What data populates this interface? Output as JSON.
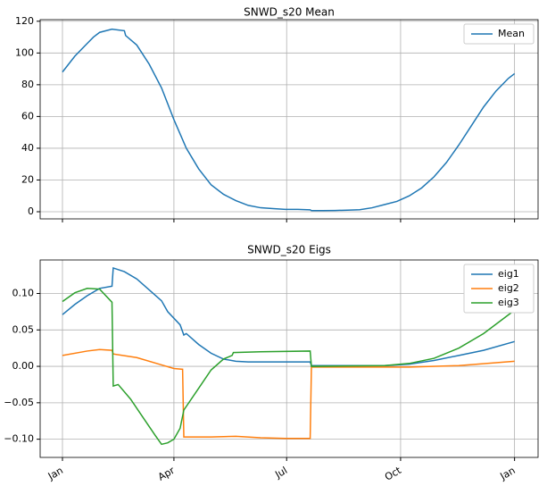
{
  "chart_data": [
    {
      "type": "line",
      "title": "SNWD_s20 Mean",
      "series": [
        {
          "name": "Mean",
          "color": "#1f77b4",
          "x": [
            0,
            10,
            20,
            25,
            30,
            40,
            50,
            51,
            60,
            70,
            80,
            90,
            100,
            110,
            120,
            130,
            140,
            150,
            160,
            170,
            180,
            190,
            200,
            201,
            210,
            220,
            230,
            240,
            250,
            260,
            270,
            280,
            290,
            300,
            310,
            320,
            330,
            340,
            350,
            360,
            365
          ],
          "values": [
            88,
            98,
            106,
            110,
            113,
            115,
            114,
            111,
            105,
            93,
            78,
            58,
            40,
            27,
            17,
            11,
            7,
            4,
            2.5,
            2,
            1.5,
            1.5,
            1.2,
            0.7,
            0.7,
            0.8,
            1,
            1.3,
            2.5,
            4.5,
            6.5,
            10,
            15,
            22,
            31,
            42,
            54,
            66,
            76,
            84,
            87
          ]
        }
      ],
      "xlim": [
        -18,
        384
      ],
      "ylim": [
        -4.5,
        121
      ],
      "xticks": [
        0,
        90,
        181,
        273,
        365
      ],
      "show_xticklabels": false,
      "yticks": [
        0,
        20,
        40,
        60,
        80,
        100,
        120
      ],
      "grid": true,
      "legend": "upper right"
    },
    {
      "type": "line",
      "title": "SNWD_s20 Eigs",
      "series": [
        {
          "name": "eig1",
          "color": "#1f77b4",
          "x": [
            0,
            10,
            20,
            30,
            40,
            41,
            50,
            60,
            70,
            80,
            85,
            95,
            98,
            100,
            110,
            120,
            130,
            140,
            150,
            200,
            201,
            260,
            280,
            300,
            320,
            340,
            365
          ],
          "values": [
            0.071,
            0.085,
            0.097,
            0.107,
            0.11,
            0.135,
            0.13,
            0.12,
            0.105,
            0.09,
            0.075,
            0.057,
            0.043,
            0.045,
            0.03,
            0.018,
            0.01,
            0.007,
            0.006,
            0.006,
            0.001,
            0.001,
            0.003,
            0.008,
            0.015,
            0.022,
            0.034
          ]
        },
        {
          "name": "eig2",
          "color": "#ff7f0e",
          "x": [
            0,
            20,
            30,
            40,
            41,
            60,
            80,
            90,
            97,
            98,
            120,
            140,
            160,
            180,
            200,
            201,
            280,
            320,
            365
          ],
          "values": [
            0.015,
            0.021,
            0.023,
            0.022,
            0.017,
            0.012,
            0.002,
            -0.003,
            -0.004,
            -0.097,
            -0.097,
            -0.096,
            -0.098,
            -0.099,
            -0.099,
            -0.001,
            -0.001,
            0.001,
            0.007
          ]
        },
        {
          "name": "eig3",
          "color": "#2ca02c",
          "x": [
            0,
            10,
            20,
            30,
            40,
            41,
            45,
            55,
            65,
            75,
            80,
            85,
            90,
            95,
            98,
            110,
            120,
            130,
            137,
            138,
            160,
            200,
            201,
            260,
            280,
            300,
            320,
            340,
            365
          ],
          "values": [
            0.089,
            0.101,
            0.107,
            0.106,
            0.088,
            -0.027,
            -0.025,
            -0.045,
            -0.07,
            -0.095,
            -0.107,
            -0.105,
            -0.1,
            -0.085,
            -0.06,
            -0.03,
            -0.005,
            0.01,
            0.015,
            0.019,
            0.02,
            0.021,
            0,
            0.001,
            0.004,
            0.011,
            0.025,
            0.045,
            0.077
          ]
        }
      ],
      "xlim": [
        -18,
        384
      ],
      "ylim": [
        -0.125,
        0.146
      ],
      "xticks": [
        {
          "value": 0,
          "label": "Jan"
        },
        {
          "value": 90,
          "label": "Apr"
        },
        {
          "value": 181,
          "label": "Jul"
        },
        {
          "value": 273,
          "label": "Oct"
        },
        {
          "value": 365,
          "label": "Jan"
        }
      ],
      "show_xticklabels": true,
      "yticks": [
        {
          "value": -0.1,
          "label": "−0.10"
        },
        {
          "value": -0.05,
          "label": "−0.05"
        },
        {
          "value": 0,
          "label": "0.00"
        },
        {
          "value": 0.05,
          "label": "0.05"
        },
        {
          "value": 0.1,
          "label": "0.10"
        }
      ],
      "grid": true,
      "legend": "upper right"
    }
  ]
}
